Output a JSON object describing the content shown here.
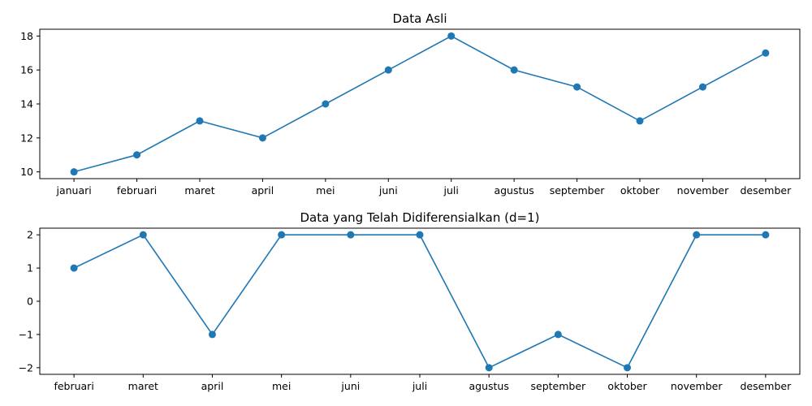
{
  "chart_data": [
    {
      "type": "line",
      "title": "Data Asli",
      "xlabel": "",
      "ylabel": "",
      "categories": [
        "januari",
        "februari",
        "maret",
        "april",
        "mei",
        "juni",
        "juli",
        "agustus",
        "september",
        "oktober",
        "november",
        "desember"
      ],
      "series": [
        {
          "values": [
            10,
            11,
            13,
            12,
            14,
            16,
            18,
            16,
            15,
            13,
            15,
            17
          ],
          "color": "#1f77b4",
          "marker": "circle"
        }
      ],
      "yticks": [
        10,
        12,
        14,
        16,
        18
      ],
      "ylim": [
        9.6,
        18.4
      ],
      "grid": false,
      "legend": "none"
    },
    {
      "type": "line",
      "title": "Data yang Telah Didiferensialkan (d=1)",
      "xlabel": "",
      "ylabel": "",
      "categories": [
        "februari",
        "maret",
        "april",
        "mei",
        "juni",
        "juli",
        "agustus",
        "september",
        "oktober",
        "november",
        "desember"
      ],
      "series": [
        {
          "values": [
            1,
            2,
            -1,
            2,
            2,
            2,
            -2,
            -1,
            -2,
            2,
            2
          ],
          "color": "#1f77b4",
          "marker": "circle"
        }
      ],
      "yticks": [
        2,
        1,
        0,
        -1,
        -2
      ],
      "ytick_labels": [
        "2",
        "1",
        "0",
        "−1",
        "−2"
      ],
      "ylim": [
        -2.2,
        2.2
      ],
      "grid": false,
      "legend": "none"
    }
  ]
}
